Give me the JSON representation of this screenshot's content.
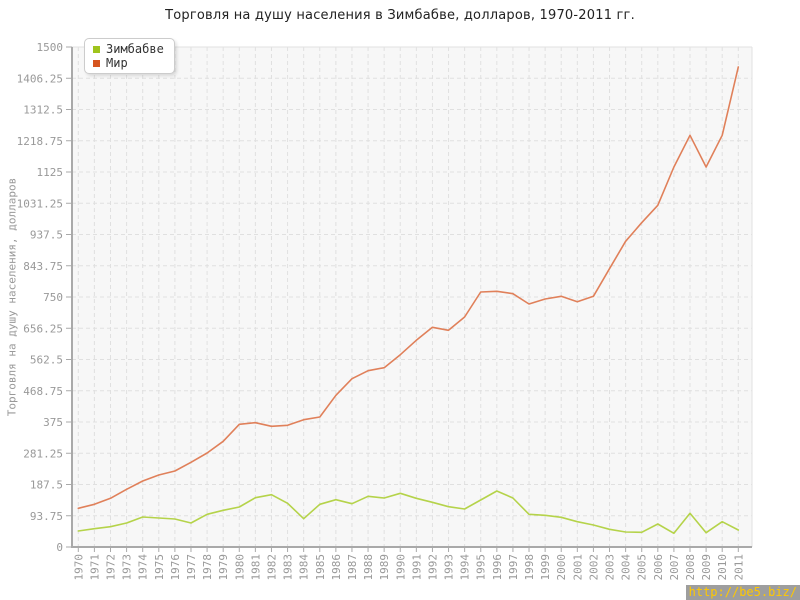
{
  "watermark": {
    "text": "http://be5.biz/",
    "bg_color": "#9e9e9e",
    "text_color": "#ffc800"
  },
  "chart_data": {
    "type": "line",
    "title": "Торговля на душу населения в Зимбабве, долларов, 1970-2011 гг.",
    "ylabel": "Торговля на душу населения, долларов",
    "xlabel": "",
    "x": [
      "1970",
      "1971",
      "1972",
      "1973",
      "1974",
      "1975",
      "1976",
      "1977",
      "1978",
      "1979",
      "1980",
      "1981",
      "1982",
      "1983",
      "1984",
      "1985",
      "1986",
      "1987",
      "1988",
      "1989",
      "1990",
      "1991",
      "1992",
      "1993",
      "1994",
      "1995",
      "1996",
      "1997",
      "1998",
      "1999",
      "2000",
      "2001",
      "2002",
      "2003",
      "2004",
      "2005",
      "2006",
      "2007",
      "2008",
      "2009",
      "2010",
      "2011"
    ],
    "ylim": [
      0,
      1500
    ],
    "y_ticks": [
      "0",
      "93.75",
      "187.5",
      "281.25",
      "375",
      "468.75",
      "562.5",
      "656.25",
      "750",
      "843.75",
      "937.5",
      "1031.25",
      "1125",
      "1218.75",
      "1312.5",
      "1406.25",
      "1500"
    ],
    "grid": "dashed",
    "legend_position": "top-left",
    "colors": {
      "plot_background": "#f7f7f7",
      "gridline": "#e0e0e0",
      "axis": "#a9a9a9",
      "frame": "#e2e2e2",
      "tick_text": "#999999"
    },
    "series": [
      {
        "name": "Зимбабве",
        "line_color": "#b5d34a",
        "marker_color": "#9fc41d",
        "values": [
          48,
          55,
          61,
          72,
          90,
          87,
          84,
          72,
          98,
          110,
          120,
          148,
          157,
          131,
          85,
          128,
          142,
          130,
          152,
          147,
          161,
          146,
          134,
          121,
          114,
          141,
          168,
          147,
          98,
          95,
          89,
          76,
          66,
          53,
          45,
          44,
          69,
          41,
          101,
          43,
          76,
          51
        ]
      },
      {
        "name": "Мир",
        "line_color": "#e0805a",
        "marker_color": "#d6551f",
        "values": [
          116,
          128,
          146,
          173,
          198,
          216,
          228,
          254,
          282,
          317,
          368,
          373,
          362,
          365,
          382,
          390,
          455,
          505,
          529,
          538,
          577,
          620,
          659,
          650,
          690,
          765,
          767,
          760,
          729,
          744,
          752,
          736,
          752,
          835,
          917,
          973,
          1025,
          1140,
          1235,
          1140,
          1235,
          1440
        ]
      }
    ]
  }
}
